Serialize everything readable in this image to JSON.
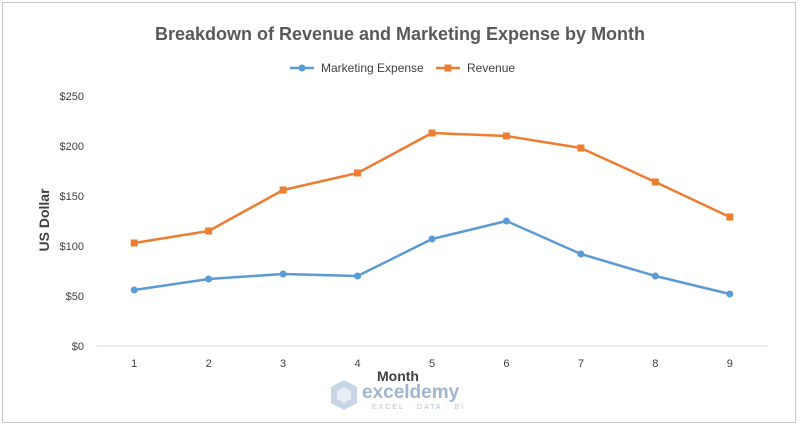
{
  "chart_data": {
    "type": "line",
    "title": "Breakdown of Revenue and Marketing Expense by Month",
    "xlabel": "Month",
    "ylabel": "US Dollar",
    "categories": [
      "1",
      "2",
      "3",
      "4",
      "5",
      "6",
      "7",
      "8",
      "9"
    ],
    "ylim": [
      0,
      250
    ],
    "yticks": [
      0,
      50,
      100,
      150,
      200,
      250
    ],
    "ytick_labels": [
      "$0",
      "$50",
      "$100",
      "$150",
      "$200",
      "$250"
    ],
    "grid": false,
    "legend_position": "top",
    "series": [
      {
        "name": "Marketing Expense",
        "color": "#5b9bd5",
        "marker": "circle",
        "values": [
          56,
          67,
          72,
          70,
          107,
          125,
          92,
          70,
          52
        ]
      },
      {
        "name": "Revenue",
        "color": "#ed7d31",
        "marker": "square",
        "values": [
          103,
          115,
          156,
          173,
          213,
          210,
          198,
          164,
          129
        ]
      }
    ]
  },
  "watermark": {
    "name": "exceldemy",
    "tagline": "EXCEL · DATA · BI",
    "icon": "exceldemy-logo-icon"
  }
}
